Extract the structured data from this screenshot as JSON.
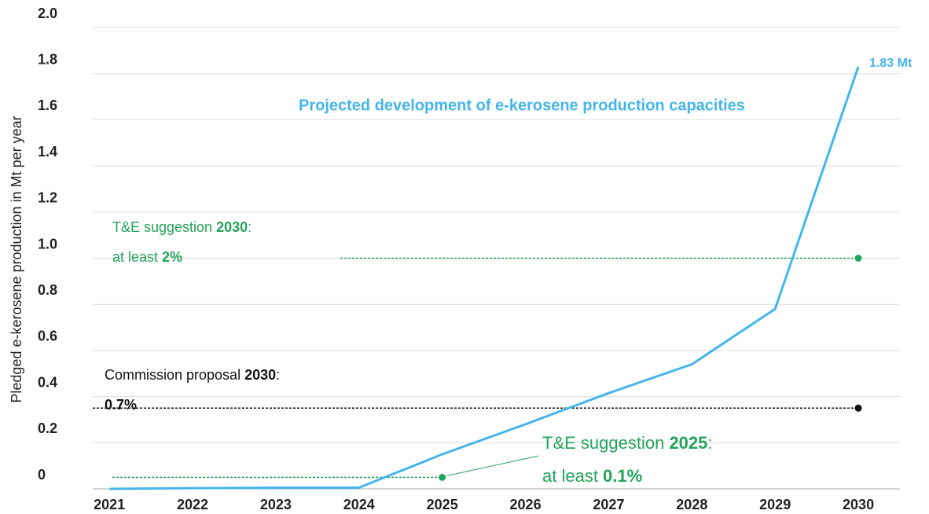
{
  "chart_data": {
    "type": "line",
    "ylabel": "Pledged e-kerosene production in Mt per year",
    "x": [
      2021,
      2022,
      2023,
      2024,
      2025,
      2026,
      2027,
      2028,
      2029,
      2030
    ],
    "xlim": [
      2020.8,
      2030.5
    ],
    "xticks": [
      2021,
      2022,
      2023,
      2024,
      2025,
      2026,
      2027,
      2028,
      2029,
      2030
    ],
    "ylim": [
      0,
      2
    ],
    "yticks": [
      0,
      0.2,
      0.4,
      0.6,
      0.8,
      {
        "value": 1,
        "label": "1.0"
      },
      1.2,
      1.4,
      1.6,
      1.8,
      {
        "value": 2,
        "label": "2.0"
      }
    ],
    "grid": true,
    "series": [
      {
        "name": "Projected development of e-kerosene production capacities",
        "color": "#45b6ea",
        "values": [
          0,
          0.003,
          0.005,
          0.005,
          0.15,
          0.28,
          0.415,
          0.54,
          0.78,
          1.83
        ],
        "value_labels": [
          null,
          null,
          null,
          null,
          null,
          null,
          null,
          null,
          null,
          "1.83 Mt"
        ]
      }
    ],
    "reference_lines": [
      {
        "value": 1.0,
        "x": 2030,
        "color": "#22a35a",
        "label_lines": [
          [
            {
              "text": "T&E suggestion "
            },
            {
              "text": "2030",
              "bold": true
            },
            {
              "text": ":"
            }
          ],
          [
            {
              "text": "at least "
            },
            {
              "text": "2%",
              "bold": true
            }
          ]
        ]
      },
      {
        "value": 0.35,
        "x": 2030,
        "color": "#111111",
        "label_lines": [
          [
            {
              "text": "Commission proposal "
            },
            {
              "text": "2030",
              "bold": true
            },
            {
              "text": ":"
            }
          ],
          [
            {
              "text": "0.7%",
              "bold": true
            }
          ]
        ]
      },
      {
        "value": 0.05,
        "x": 2025,
        "color": "#22a35a",
        "label_lines": [
          [
            {
              "text": "T&E suggestion "
            },
            {
              "text": "2025",
              "bold": true
            },
            {
              "text": ":"
            }
          ],
          [
            {
              "text": "at least "
            },
            {
              "text": "0.1%",
              "bold": true
            }
          ]
        ]
      }
    ]
  }
}
